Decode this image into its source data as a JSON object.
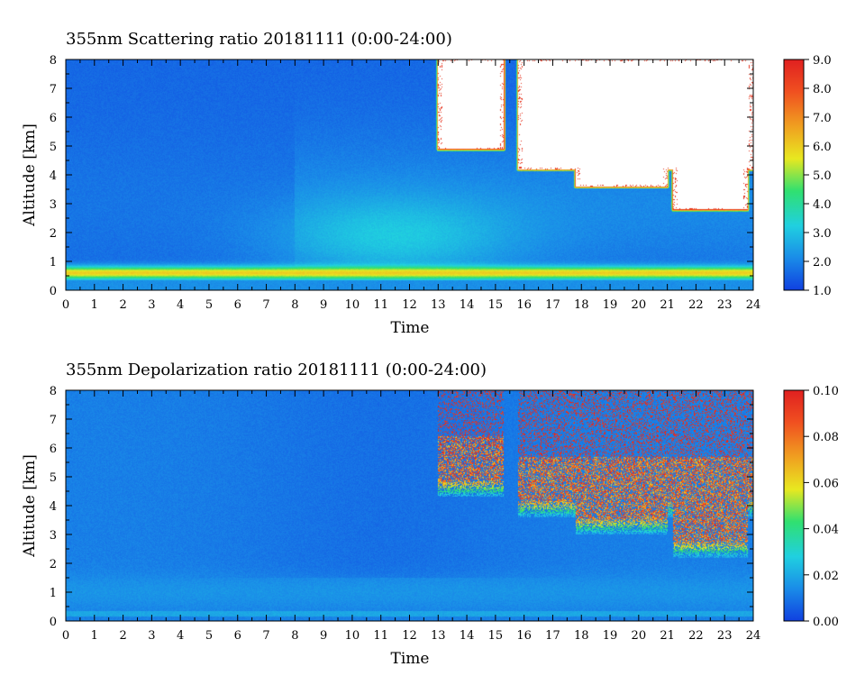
{
  "chart_data": [
    {
      "type": "heatmap",
      "title": "355nm Scattering ratio  20181111 (0:00-24:00)",
      "xlabel": "Time",
      "ylabel": "Altitude [km]",
      "xlim": [
        0,
        24
      ],
      "ylim": [
        0,
        8
      ],
      "x_ticks": [
        "0",
        "1",
        "2",
        "3",
        "4",
        "5",
        "6",
        "7",
        "8",
        "9",
        "10",
        "11",
        "12",
        "13",
        "14",
        "15",
        "16",
        "17",
        "18",
        "19",
        "20",
        "21",
        "22",
        "23",
        "24"
      ],
      "y_ticks": [
        "0",
        "1",
        "2",
        "3",
        "4",
        "5",
        "6",
        "7",
        "8"
      ],
      "colorbar": {
        "min": 1.0,
        "max": 9.0,
        "ticks": [
          "1.0",
          "2.0",
          "3.0",
          "4.0",
          "5.0",
          "6.0",
          "7.0",
          "8.0",
          "9.0"
        ],
        "colors": [
          "#1040e0",
          "#1a8ce8",
          "#20d0e0",
          "#30e070",
          "#e8e820",
          "#f0a020",
          "#f05020",
          "#e02020"
        ]
      },
      "features": {
        "background_value": 1.6,
        "boundary_layer_peak": {
          "altitude_km": 0.6,
          "value": 6.0
        },
        "clouds_above_max": [
          {
            "t0": 13.0,
            "t1": 15.3,
            "z0": 4.9,
            "z1": 8.0
          },
          {
            "t0": 15.8,
            "t1": 24.0,
            "z0": 4.2,
            "z1": 8.0
          },
          {
            "t0": 17.8,
            "t1": 21.0,
            "z0": 3.6,
            "z1": 4.6
          },
          {
            "t0": 21.2,
            "t1": 23.8,
            "z0": 2.8,
            "z1": 4.6
          }
        ]
      }
    },
    {
      "type": "heatmap",
      "title": "355nm Depolarization ratio  20181111 (0:00-24:00)",
      "xlabel": "Time",
      "ylabel": "Altitude [km]",
      "xlim": [
        0,
        24
      ],
      "ylim": [
        0,
        8
      ],
      "x_ticks": [
        "0",
        "1",
        "2",
        "3",
        "4",
        "5",
        "6",
        "7",
        "8",
        "9",
        "10",
        "11",
        "12",
        "13",
        "14",
        "15",
        "16",
        "17",
        "18",
        "19",
        "20",
        "21",
        "22",
        "23",
        "24"
      ],
      "y_ticks": [
        "0",
        "1",
        "2",
        "3",
        "4",
        "5",
        "6",
        "7",
        "8"
      ],
      "colorbar": {
        "min": 0.0,
        "max": 0.1,
        "ticks": [
          "0.00",
          "0.02",
          "0.04",
          "0.06",
          "0.08",
          "0.10"
        ],
        "colors": [
          "#1040e0",
          "#1a8ce8",
          "#20d0e0",
          "#30e070",
          "#e8e820",
          "#f0a020",
          "#f05020",
          "#e02020"
        ]
      },
      "features": {
        "background_value": 0.012,
        "cloud_depolarization_max": 0.1
      }
    }
  ]
}
